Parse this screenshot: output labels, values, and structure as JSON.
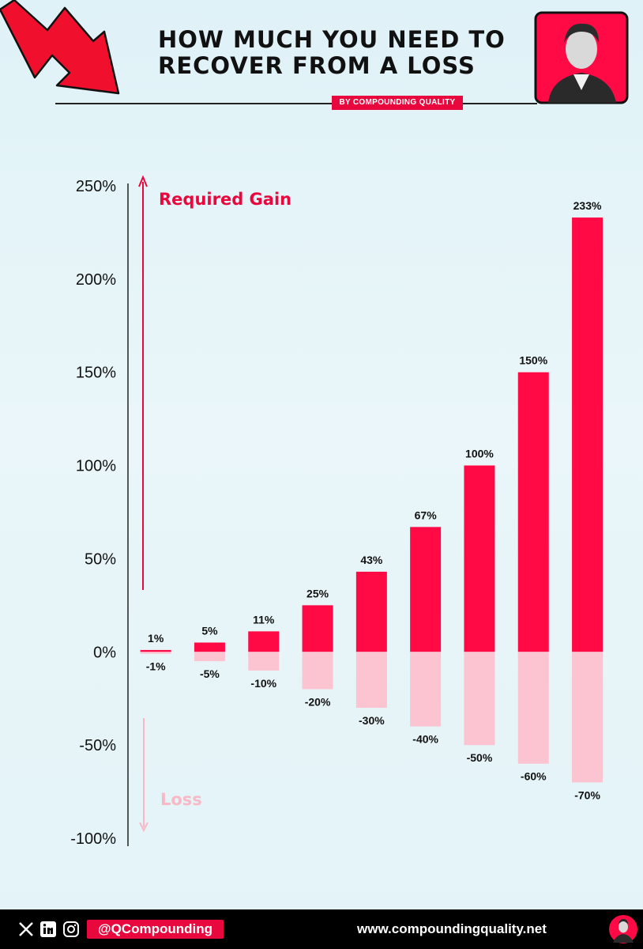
{
  "header": {
    "title_line1": "HOW MUCH YOU NEED TO",
    "title_line2": "RECOVER FROM A LOSS",
    "byline": "BY COMPOUNDING QUALITY"
  },
  "chart_data": {
    "type": "bar",
    "title": "HOW MUCH YOU NEED TO RECOVER FROM A LOSS",
    "series": [
      {
        "name": "Required Gain",
        "color": "#ff0a45",
        "values": [
          1,
          5,
          11,
          25,
          43,
          67,
          100,
          150,
          233
        ],
        "labels": [
          "1%",
          "5%",
          "11%",
          "25%",
          "43%",
          "67%",
          "100%",
          "150%",
          "233%"
        ]
      },
      {
        "name": "Loss",
        "color": "#fcc3d0",
        "values": [
          -1,
          -5,
          -10,
          -20,
          -30,
          -40,
          -50,
          -60,
          -70
        ],
        "labels": [
          "-1%",
          "-5%",
          "-10%",
          "-20%",
          "-30%",
          "-40%",
          "-50%",
          "-60%",
          "-70%"
        ]
      }
    ],
    "ylim": [
      -100,
      250
    ],
    "yticks": [
      250,
      200,
      150,
      100,
      50,
      0,
      -50,
      -100
    ],
    "ytick_labels": [
      "250%",
      "200%",
      "150%",
      "100%",
      "50%",
      "0%",
      "-50%",
      "-100%"
    ],
    "annotations": {
      "gain": "Required Gain",
      "loss": "Loss"
    },
    "grid": false
  },
  "footer": {
    "handle": "@QCompounding",
    "url": "www.compoundingquality.net",
    "icons": [
      "x-icon",
      "linkedin-icon",
      "instagram-icon"
    ]
  },
  "colors": {
    "accent": "#e8083e",
    "gain": "#ff0a45",
    "loss": "#fcc3d0",
    "footer": "#000000"
  }
}
